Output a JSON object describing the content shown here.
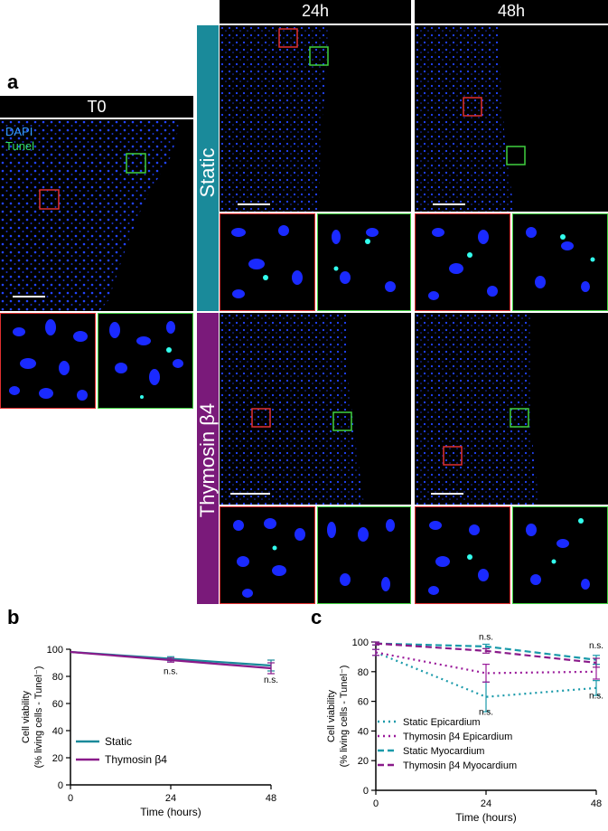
{
  "panel_a": {
    "letter": "a",
    "t0_header": "T0",
    "col_headers": [
      "24h",
      "48h"
    ],
    "row_labels": [
      "Static",
      "Thymosin β4"
    ],
    "stain_dapi": "DAPI",
    "stain_tunel": "Tunel",
    "colors": {
      "dapi": "#1a3cff",
      "tunel": "#33ff88",
      "static_bar": "#1a8a9a",
      "thymosin_bar": "#7a1a7a",
      "roi_red": "#e03030",
      "roi_green": "#40d040"
    }
  },
  "panel_b": {
    "letter": "b"
  },
  "panel_c": {
    "letter": "c"
  },
  "chart_data": [
    {
      "type": "line",
      "panel": "b",
      "xlabel": "Time (hours)",
      "ylabel": "Cell viability",
      "ylabel2": "(% living cells - Tunel⁻)",
      "x": [
        0,
        24,
        48
      ],
      "xticks": [
        "0",
        "24",
        "48"
      ],
      "yticks": [
        "0",
        "20",
        "40",
        "60",
        "80",
        "100"
      ],
      "xlim": [
        0,
        48
      ],
      "ylim": [
        0,
        100
      ],
      "legend_position": "bottom-left",
      "annotations": [
        {
          "x": 24,
          "text": "n.s."
        },
        {
          "x": 48,
          "text": "n.s."
        }
      ],
      "series": [
        {
          "name": "Static",
          "values": [
            98,
            93,
            88
          ],
          "err": [
            0,
            1.5,
            4
          ],
          "color": "#1a8a9a",
          "dash": "solid"
        },
        {
          "name": "Thymosin β4",
          "values": [
            98,
            92,
            86
          ],
          "err": [
            0,
            1.5,
            4
          ],
          "color": "#8a1a8a",
          "dash": "solid"
        }
      ]
    },
    {
      "type": "line",
      "panel": "c",
      "xlabel": "Time (hours)",
      "ylabel": "Cell viability",
      "ylabel2": "(% living cells - Tunel⁻)",
      "x": [
        0,
        24,
        48
      ],
      "xticks": [
        "0",
        "24",
        "48"
      ],
      "yticks": [
        "0",
        "20",
        "40",
        "60",
        "80",
        "100"
      ],
      "xlim": [
        0,
        48
      ],
      "ylim": [
        0,
        100
      ],
      "legend_position": "bottom-left",
      "annotations": [
        {
          "x": 24,
          "text": "n.s.",
          "pos": "above"
        },
        {
          "x": 24,
          "text": "n.s.",
          "pos": "below"
        },
        {
          "x": 48,
          "text": "n.s.",
          "pos": "above"
        },
        {
          "x": 48,
          "text": "n.s.",
          "pos": "below"
        }
      ],
      "series": [
        {
          "name": "Static Epicardium",
          "values": [
            93,
            63,
            69
          ],
          "err": [
            2,
            10,
            5
          ],
          "color": "#1a9aaa",
          "dash": "dotted"
        },
        {
          "name": "Thymosin β4 Epicardium",
          "values": [
            93,
            79,
            80
          ],
          "err": [
            2,
            6,
            5
          ],
          "color": "#9a1a9a",
          "dash": "dotted"
        },
        {
          "name": "Static Myocardium",
          "values": [
            99,
            97,
            88
          ],
          "err": [
            1,
            1.5,
            3
          ],
          "color": "#1a9aaa",
          "dash": "dashed"
        },
        {
          "name": "Thymosin β4 Myocardium",
          "values": [
            99,
            94,
            86
          ],
          "err": [
            1,
            1.5,
            3
          ],
          "color": "#8a1a8a",
          "dash": "dashed"
        }
      ]
    }
  ]
}
